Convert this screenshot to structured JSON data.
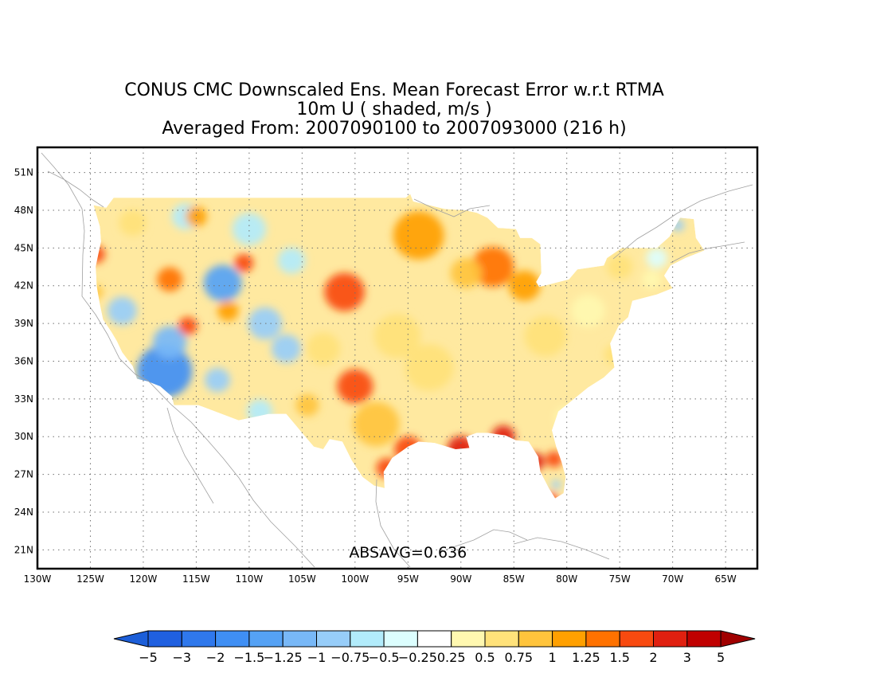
{
  "title": {
    "line1": "CONUS CMC Downscaled Ens. Mean Forecast Error w.r.t RTMA",
    "line2": "10m U ( shaded, m/s )",
    "line3": "Averaged From: 2007090100 to 2007093000 (216 h)"
  },
  "map": {
    "lon_range": [
      -130,
      -62
    ],
    "lat_range": [
      19.5,
      53
    ],
    "lat_ticks": [
      {
        "value": 51,
        "label": "51N"
      },
      {
        "value": 48,
        "label": "48N"
      },
      {
        "value": 45,
        "label": "45N"
      },
      {
        "value": 42,
        "label": "42N"
      },
      {
        "value": 39,
        "label": "39N"
      },
      {
        "value": 36,
        "label": "36N"
      },
      {
        "value": 33,
        "label": "33N"
      },
      {
        "value": 30,
        "label": "30N"
      },
      {
        "value": 27,
        "label": "27N"
      },
      {
        "value": 24,
        "label": "24N"
      },
      {
        "value": 21,
        "label": "21N"
      }
    ],
    "lon_ticks": [
      {
        "value": -130,
        "label": "130W"
      },
      {
        "value": -125,
        "label": "125W"
      },
      {
        "value": -120,
        "label": "120W"
      },
      {
        "value": -115,
        "label": "115W"
      },
      {
        "value": -110,
        "label": "110W"
      },
      {
        "value": -105,
        "label": "105W"
      },
      {
        "value": -100,
        "label": "100W"
      },
      {
        "value": -95,
        "label": "95W"
      },
      {
        "value": -90,
        "label": "90W"
      },
      {
        "value": -85,
        "label": "85W"
      },
      {
        "value": -80,
        "label": "80W"
      },
      {
        "value": -75,
        "label": "75W"
      },
      {
        "value": -70,
        "label": "70W"
      },
      {
        "value": -65,
        "label": "65W"
      }
    ],
    "absavg_label": "ABSAVG=0.636",
    "absavg_pos": {
      "lon": -95,
      "lat": 20.5
    }
  },
  "colorbar": {
    "colors": [
      "#2060e0",
      "#2f78ec",
      "#3f8ff4",
      "#55a2f5",
      "#78b8f7",
      "#97cdf9",
      "#b2ecfb",
      "#dcfefe",
      "#ffffff",
      "#fff8b0",
      "#ffe27a",
      "#ffc43c",
      "#ffa000",
      "#ff7200",
      "#f84a10",
      "#e02010",
      "#c00000"
    ],
    "under_color": "#1c5ed8",
    "over_color": "#a00000",
    "labels": [
      "−5",
      "−3",
      "−2",
      "−1.5",
      "−1.25",
      "−1",
      "−0.75",
      "−0.5",
      "−0.25",
      "0.25",
      "0.5",
      "0.75",
      "1",
      "1.25",
      "1.5",
      "2",
      "3",
      "5"
    ]
  },
  "anomalies": [
    {
      "lon": -118,
      "lat": 35.2,
      "r": 2.6,
      "v": -2.0
    },
    {
      "lon": -112.5,
      "lat": 42.2,
      "r": 1.8,
      "v": -1.4
    },
    {
      "lon": -117.5,
      "lat": 37.5,
      "r": 1.6,
      "v": -1.2
    },
    {
      "lon": -122,
      "lat": 40,
      "r": 1.4,
      "v": -1.0
    },
    {
      "lon": -108.5,
      "lat": 39,
      "r": 1.6,
      "v": -0.8
    },
    {
      "lon": -106.5,
      "lat": 37,
      "r": 1.4,
      "v": -0.8
    },
    {
      "lon": -110,
      "lat": 46.5,
      "r": 1.6,
      "v": -0.7
    },
    {
      "lon": -106,
      "lat": 44,
      "r": 1.3,
      "v": -0.6
    },
    {
      "lon": -113,
      "lat": 34.5,
      "r": 1.2,
      "v": -0.9
    },
    {
      "lon": -109,
      "lat": 32,
      "r": 1.2,
      "v": -0.7
    },
    {
      "lon": -116,
      "lat": 47.5,
      "r": 1.3,
      "v": -0.6
    },
    {
      "lon": -121,
      "lat": 47,
      "r": 1.3,
      "v": 0.6
    },
    {
      "lon": -124.5,
      "lat": 44.5,
      "r": 0.9,
      "v": 1.5
    },
    {
      "lon": -124.5,
      "lat": 41.5,
      "r": 0.7,
      "v": 0.8
    },
    {
      "lon": -117.5,
      "lat": 42.5,
      "r": 1.2,
      "v": 1.4
    },
    {
      "lon": -115.8,
      "lat": 38.8,
      "r": 0.9,
      "v": 1.5
    },
    {
      "lon": -112,
      "lat": 40,
      "r": 1.0,
      "v": 1.0
    },
    {
      "lon": -115,
      "lat": 47.5,
      "r": 1.0,
      "v": 1.0
    },
    {
      "lon": -101,
      "lat": 41.5,
      "r": 1.9,
      "v": 1.7
    },
    {
      "lon": -100,
      "lat": 34,
      "r": 1.7,
      "v": 1.5
    },
    {
      "lon": -94,
      "lat": 46,
      "r": 2.4,
      "v": 1.2
    },
    {
      "lon": -87,
      "lat": 43.5,
      "r": 2.0,
      "v": 1.3
    },
    {
      "lon": -89.5,
      "lat": 43,
      "r": 1.5,
      "v": 0.9
    },
    {
      "lon": -84,
      "lat": 42,
      "r": 1.5,
      "v": 1.0
    },
    {
      "lon": -96,
      "lat": 38,
      "r": 2.2,
      "v": 0.7
    },
    {
      "lon": -93,
      "lat": 35.5,
      "r": 2.3,
      "v": 0.6
    },
    {
      "lon": -98,
      "lat": 31,
      "r": 2.2,
      "v": 0.8
    },
    {
      "lon": -103,
      "lat": 37,
      "r": 1.6,
      "v": 0.6
    },
    {
      "lon": -82,
      "lat": 38,
      "r": 2.0,
      "v": 0.5
    },
    {
      "lon": -78,
      "lat": 40,
      "r": 1.6,
      "v": 0.4
    },
    {
      "lon": -75.5,
      "lat": 36.5,
      "r": 1.0,
      "v": 0.7
    },
    {
      "lon": -75,
      "lat": 43.5,
      "r": 1.2,
      "v": 0.5
    },
    {
      "lon": -72,
      "lat": 42.5,
      "r": 0.9,
      "v": 0.4
    },
    {
      "lon": -71.5,
      "lat": 44.2,
      "r": 1.0,
      "v": -0.4
    },
    {
      "lon": -69.5,
      "lat": 46.8,
      "r": 0.6,
      "v": -0.8
    },
    {
      "lon": -80,
      "lat": 31.5,
      "r": 1.1,
      "v": 0.4
    },
    {
      "lon": -95,
      "lat": 29,
      "r": 1.3,
      "v": 1.9
    },
    {
      "lon": -90,
      "lat": 29,
      "r": 1.3,
      "v": 2.2
    },
    {
      "lon": -86,
      "lat": 30,
      "r": 1.1,
      "v": 2.0
    },
    {
      "lon": -83,
      "lat": 28,
      "r": 0.9,
      "v": 2.2
    },
    {
      "lon": -81.2,
      "lat": 28.2,
      "r": 0.8,
      "v": 1.8
    },
    {
      "lon": -81.5,
      "lat": 25,
      "r": 0.7,
      "v": 1.6
    },
    {
      "lon": -97,
      "lat": 27.5,
      "r": 1.0,
      "v": 1.7
    },
    {
      "lon": -81,
      "lat": 26.2,
      "r": 0.45,
      "v": -0.8
    },
    {
      "lon": -104.5,
      "lat": 32.5,
      "r": 1.1,
      "v": 0.8
    },
    {
      "lon": -110.5,
      "lat": 43.8,
      "r": 0.9,
      "v": 1.6
    }
  ]
}
